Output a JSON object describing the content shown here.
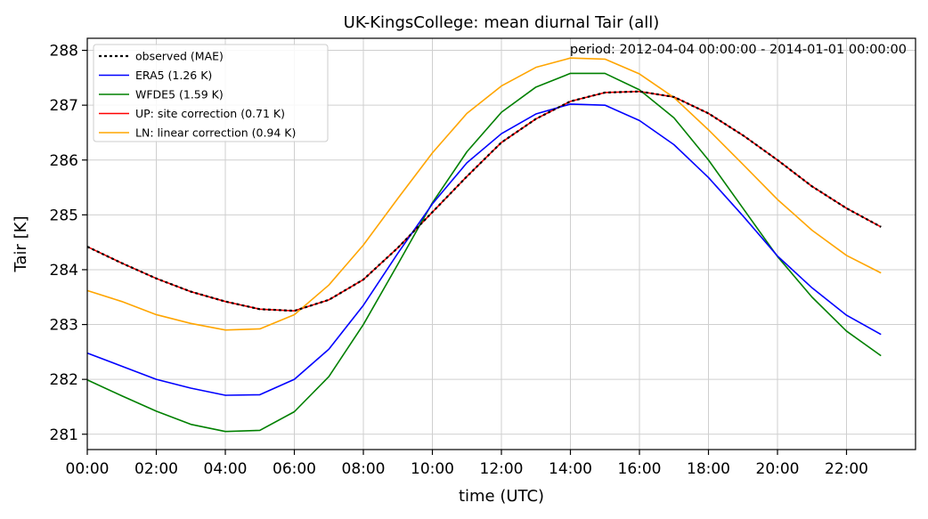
{
  "chart_data": {
    "type": "line",
    "title": "UK-KingsCollege: mean diurnal Tair (all)",
    "annotation": "period: 2012-04-04 00:00:00 - 2014-01-01 00:00:00",
    "xlabel": "time (UTC)",
    "ylabel": "Tair [K]",
    "x_hours": [
      0,
      1,
      2,
      3,
      4,
      5,
      6,
      7,
      8,
      9,
      10,
      11,
      12,
      13,
      14,
      15,
      16,
      17,
      18,
      19,
      20,
      21,
      22,
      23
    ],
    "xlim": [
      0,
      24
    ],
    "ylim": [
      280.72,
      288.22
    ],
    "xticks": [
      0,
      2,
      4,
      6,
      8,
      10,
      12,
      14,
      16,
      18,
      20,
      22
    ],
    "xtick_labels": [
      "00:00",
      "02:00",
      "04:00",
      "06:00",
      "08:00",
      "10:00",
      "12:00",
      "14:00",
      "16:00",
      "18:00",
      "20:00",
      "22:00"
    ],
    "yticks": [
      281,
      282,
      283,
      284,
      285,
      286,
      287,
      288
    ],
    "ytick_labels": [
      "281",
      "282",
      "283",
      "284",
      "285",
      "286",
      "287",
      "288"
    ],
    "grid": true,
    "legend_position": "top-left",
    "series": [
      {
        "name": "observed (MAE)",
        "color": "#000000",
        "style": "dotted",
        "values": [
          284.42,
          284.12,
          283.84,
          283.6,
          283.42,
          283.28,
          283.25,
          283.45,
          283.82,
          284.4,
          285.05,
          285.7,
          286.32,
          286.75,
          287.07,
          287.23,
          287.25,
          287.15,
          286.85,
          286.45,
          286.0,
          285.52,
          285.12,
          284.78
        ]
      },
      {
        "name": "ERA5 (1.26 K)",
        "color": "#0000ff",
        "style": "solid",
        "values": [
          282.48,
          282.24,
          282.0,
          281.84,
          281.71,
          281.72,
          282.0,
          282.55,
          283.35,
          284.3,
          285.2,
          285.95,
          286.48,
          286.84,
          287.02,
          287.0,
          286.72,
          286.28,
          285.68,
          284.98,
          284.25,
          283.67,
          283.17,
          282.82
        ]
      },
      {
        "name": "WFDE5 (1.59 K)",
        "color": "#008000",
        "style": "solid",
        "values": [
          281.99,
          281.7,
          281.42,
          281.18,
          281.05,
          281.07,
          281.41,
          282.05,
          283.0,
          284.1,
          285.22,
          286.15,
          286.87,
          287.33,
          287.58,
          287.58,
          287.28,
          286.77,
          286.0,
          285.12,
          284.24,
          283.5,
          282.88,
          282.43
        ]
      },
      {
        "name": "UP: site correction (0.71 K)",
        "color": "#ff0000",
        "style": "solid",
        "values": [
          284.42,
          284.12,
          283.84,
          283.6,
          283.42,
          283.28,
          283.25,
          283.45,
          283.82,
          284.4,
          285.05,
          285.7,
          286.32,
          286.75,
          287.07,
          287.23,
          287.25,
          287.15,
          286.85,
          286.45,
          286.0,
          285.52,
          285.12,
          284.78
        ]
      },
      {
        "name": "LN: linear correction (0.94 K)",
        "color": "#ffa500",
        "style": "solid",
        "values": [
          283.62,
          283.42,
          283.18,
          283.02,
          282.9,
          282.92,
          283.18,
          283.72,
          284.45,
          285.3,
          286.13,
          286.85,
          287.35,
          287.69,
          287.86,
          287.84,
          287.57,
          287.14,
          286.55,
          285.92,
          285.28,
          284.72,
          284.26,
          283.94
        ]
      }
    ]
  }
}
